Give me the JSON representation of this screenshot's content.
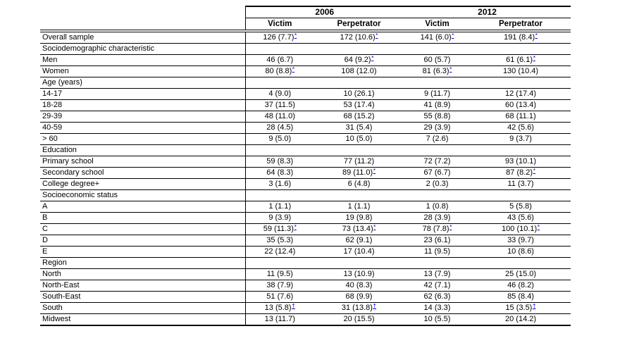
{
  "colors": {
    "footnote_link": "#0000dd",
    "text": "#000000",
    "border": "#000000",
    "background": "#ffffff"
  },
  "table": {
    "year_groups": [
      "2006",
      "2012"
    ],
    "sub_headers": [
      "Victim",
      "Perpetrator",
      "Victim",
      "Perpetrator"
    ],
    "footnote_markers": [
      "*",
      "†"
    ],
    "rows": [
      {
        "label": "Overall sample",
        "cells": [
          {
            "text": "126 (7.7)",
            "mark": "*"
          },
          {
            "text": "172 (10.6)",
            "mark": "*"
          },
          {
            "text": "141 (6.0)",
            "mark": "*"
          },
          {
            "text": "191 (8.4)",
            "mark": "*"
          }
        ]
      },
      {
        "label": "Sociodemographic characteristic",
        "section": true
      },
      {
        "label": "Men",
        "cells": [
          {
            "text": "46 (6.7)",
            "mark": ""
          },
          {
            "text": "64 (9.2)",
            "mark": "*"
          },
          {
            "text": "60 (5.7)",
            "mark": ""
          },
          {
            "text": "61 (6.1)",
            "mark": "*"
          }
        ]
      },
      {
        "label": "Women",
        "cells": [
          {
            "text": "80 (8.8)",
            "mark": "*"
          },
          {
            "text": "108 (12.0)",
            "mark": ""
          },
          {
            "text": "81 (6.3)",
            "mark": "*"
          },
          {
            "text": "130 (10.4)",
            "mark": ""
          }
        ]
      },
      {
        "label": "Age (years)",
        "section": true
      },
      {
        "label": "14-17",
        "cells": [
          {
            "text": "4 (9.0)",
            "mark": ""
          },
          {
            "text": "10 (26.1)",
            "mark": ""
          },
          {
            "text": "9 (11.7)",
            "mark": ""
          },
          {
            "text": "12 (17.4)",
            "mark": ""
          }
        ]
      },
      {
        "label": "18-28",
        "cells": [
          {
            "text": "37 (11.5)",
            "mark": ""
          },
          {
            "text": "53 (17.4)",
            "mark": ""
          },
          {
            "text": "41 (8.9)",
            "mark": ""
          },
          {
            "text": "60 (13.4)",
            "mark": ""
          }
        ]
      },
      {
        "label": "29-39",
        "cells": [
          {
            "text": "48 (11.0)",
            "mark": ""
          },
          {
            "text": "68 (15.2)",
            "mark": ""
          },
          {
            "text": "55 (8.8)",
            "mark": ""
          },
          {
            "text": "68 (11.1)",
            "mark": ""
          }
        ]
      },
      {
        "label": "40-59",
        "cells": [
          {
            "text": "28 (4.5)",
            "mark": ""
          },
          {
            "text": "31 (5.4)",
            "mark": ""
          },
          {
            "text": "29 (3.9)",
            "mark": ""
          },
          {
            "text": "42 (5.6)",
            "mark": ""
          }
        ]
      },
      {
        "label": "> 60",
        "cells": [
          {
            "text": "9 (5.0)",
            "mark": ""
          },
          {
            "text": "10 (5.0)",
            "mark": ""
          },
          {
            "text": "7 (2.6)",
            "mark": ""
          },
          {
            "text": "9 (3.7)",
            "mark": ""
          }
        ]
      },
      {
        "label": "Education",
        "section": true
      },
      {
        "label": "Primary school",
        "cells": [
          {
            "text": "59 (8.3)",
            "mark": ""
          },
          {
            "text": "77 (11.2)",
            "mark": ""
          },
          {
            "text": "72 (7.2)",
            "mark": ""
          },
          {
            "text": "93 (10.1)",
            "mark": ""
          }
        ]
      },
      {
        "label": "Secondary school",
        "cells": [
          {
            "text": "64 (8.3)",
            "mark": ""
          },
          {
            "text": "89 (11.0)",
            "mark": "*"
          },
          {
            "text": "67 (6.7)",
            "mark": ""
          },
          {
            "text": "87 (8.2)",
            "mark": "*"
          }
        ]
      },
      {
        "label": "College degree+",
        "cells": [
          {
            "text": "3 (1.6)",
            "mark": ""
          },
          {
            "text": "6 (4.8)",
            "mark": ""
          },
          {
            "text": "2 (0.3)",
            "mark": ""
          },
          {
            "text": "11 (3.7)",
            "mark": ""
          }
        ]
      },
      {
        "label": "Socioeconomic status",
        "section": true
      },
      {
        "label": "A",
        "cells": [
          {
            "text": "1 (1.1)",
            "mark": ""
          },
          {
            "text": "1 (1.1)",
            "mark": ""
          },
          {
            "text": "1 (0.8)",
            "mark": ""
          },
          {
            "text": "5 (5.8)",
            "mark": ""
          }
        ]
      },
      {
        "label": "B",
        "cells": [
          {
            "text": "9 (3.9)",
            "mark": ""
          },
          {
            "text": "19 (9.8)",
            "mark": ""
          },
          {
            "text": "28 (3.9)",
            "mark": ""
          },
          {
            "text": "43 (5.6)",
            "mark": ""
          }
        ]
      },
      {
        "label": "C",
        "cells": [
          {
            "text": "59 (11.3)",
            "mark": "*"
          },
          {
            "text": "73 (13.4)",
            "mark": "*"
          },
          {
            "text": "78 (7.8)",
            "mark": "*"
          },
          {
            "text": "100 (10.1)",
            "mark": "*"
          }
        ]
      },
      {
        "label": "D",
        "cells": [
          {
            "text": "35 (5.3)",
            "mark": ""
          },
          {
            "text": "62 (9.1)",
            "mark": ""
          },
          {
            "text": "23 (6.1)",
            "mark": ""
          },
          {
            "text": "33 (9.7)",
            "mark": ""
          }
        ]
      },
      {
        "label": "E",
        "cells": [
          {
            "text": "22 (12.4)",
            "mark": ""
          },
          {
            "text": "17 (10.4)",
            "mark": ""
          },
          {
            "text": "11 (9.5)",
            "mark": ""
          },
          {
            "text": "10 (8.6)",
            "mark": ""
          }
        ]
      },
      {
        "label": "Region",
        "section": true
      },
      {
        "label": "North",
        "cells": [
          {
            "text": "11 (9.5)",
            "mark": ""
          },
          {
            "text": "13 (10.9)",
            "mark": ""
          },
          {
            "text": "13 (7.9)",
            "mark": ""
          },
          {
            "text": "25 (15.0)",
            "mark": ""
          }
        ]
      },
      {
        "label": "North-East",
        "cells": [
          {
            "text": "38 (7.9)",
            "mark": ""
          },
          {
            "text": "40 (8.3)",
            "mark": ""
          },
          {
            "text": "42 (7.1)",
            "mark": ""
          },
          {
            "text": "46 (8.2)",
            "mark": ""
          }
        ]
      },
      {
        "label": "South-East",
        "cells": [
          {
            "text": "51 (7.6)",
            "mark": ""
          },
          {
            "text": "68 (9.9)",
            "mark": ""
          },
          {
            "text": "62 (6.3)",
            "mark": ""
          },
          {
            "text": "85 (8.4)",
            "mark": ""
          }
        ]
      },
      {
        "label": "South",
        "cells": [
          {
            "text": "13 (5.8)",
            "mark": "†"
          },
          {
            "text": "31 (13.8)",
            "mark": "†",
            "mark_first_cell": ""
          },
          {
            "text": "14 (3.3)",
            "mark": ""
          },
          {
            "text": "15 (3.5)",
            "mark": "†"
          }
        ]
      },
      {
        "label": "Midwest",
        "cells": [
          {
            "text": "13 (11.7)",
            "mark": ""
          },
          {
            "text": "20 (15.5)",
            "mark": ""
          },
          {
            "text": "10 (5.5)",
            "mark": ""
          },
          {
            "text": "20 (14.2)",
            "mark": ""
          }
        ]
      }
    ]
  }
}
